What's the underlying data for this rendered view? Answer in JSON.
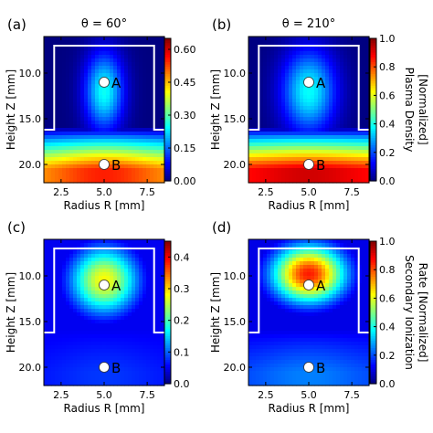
{
  "chart_data": [
    {
      "type": "heatmap",
      "panel_label": "(a)",
      "title": "θ = 60°",
      "xlabel": "Radius R [mm]",
      "ylabel": "Height Z [mm]",
      "xlim": [
        1.5,
        8.5
      ],
      "ylim": [
        22.0,
        6.0
      ],
      "xticks": [
        2.5,
        5.0,
        7.5
      ],
      "yticks": [
        10.0,
        15.0,
        20.0
      ],
      "xtick_labels": [
        "2.5",
        "5.0",
        "7.5"
      ],
      "ytick_labels": [
        "10.0",
        "15.0",
        "20.0"
      ],
      "colormap": "jet",
      "clim": [
        0.0,
        0.65
      ],
      "colorbar_ticks": [
        0.0,
        0.15,
        0.3,
        0.45,
        0.6
      ],
      "colorbar_tick_labels": [
        "0.00",
        "0.15",
        "0.30",
        "0.45",
        "0.60"
      ],
      "colorbar_label": "",
      "boundary_path": [
        [
          1.5,
          16.2
        ],
        [
          2.1,
          16.2
        ],
        [
          2.1,
          7.0
        ],
        [
          7.9,
          7.0
        ],
        [
          7.9,
          16.2
        ],
        [
          8.5,
          16.2
        ]
      ],
      "points": [
        {
          "label": "A",
          "r": 5.0,
          "z": 11.0
        },
        {
          "label": "B",
          "r": 5.0,
          "z": 20.0
        }
      ],
      "field": {
        "top_value": 0.0,
        "column_center": 0.25,
        "column_center_z": 12.0,
        "column_sigma_r": 0.8,
        "column_sigma_z": 3.0,
        "bottom_value_center": 0.55,
        "bottom_value_edge": 0.45,
        "bottom_start_z": 16.0
      }
    },
    {
      "type": "heatmap",
      "panel_label": "(b)",
      "title": "θ = 210°",
      "xlabel": "Radius R [mm]",
      "ylabel": "Height Z [mm]",
      "xlim": [
        1.5,
        8.5
      ],
      "ylim": [
        22.0,
        6.0
      ],
      "xticks": [
        2.5,
        5.0,
        7.5
      ],
      "yticks": [
        10.0,
        15.0,
        20.0
      ],
      "xtick_labels": [
        "2.5",
        "5.0",
        "7.5"
      ],
      "ytick_labels": [
        "10.0",
        "15.0",
        "20.0"
      ],
      "colormap": "jet",
      "clim": [
        0.0,
        1.0
      ],
      "colorbar_ticks": [
        0.0,
        0.2,
        0.4,
        0.6,
        0.8,
        1.0
      ],
      "colorbar_tick_labels": [
        "0.0",
        "0.2",
        "0.4",
        "0.6",
        "0.8",
        "1.0"
      ],
      "colorbar_label": "Plasma Density [Normalized]",
      "colorbar_label_lines": [
        "Plasma Density",
        "[Normalized]"
      ],
      "boundary_path": [
        [
          1.5,
          16.2
        ],
        [
          2.1,
          16.2
        ],
        [
          2.1,
          7.0
        ],
        [
          7.9,
          7.0
        ],
        [
          7.9,
          16.2
        ],
        [
          8.5,
          16.2
        ]
      ],
      "points": [
        {
          "label": "A",
          "r": 5.0,
          "z": 11.0
        },
        {
          "label": "B",
          "r": 5.0,
          "z": 20.0
        }
      ],
      "field": {
        "top_value": 0.0,
        "column_center": 0.38,
        "column_center_z": 12.0,
        "column_sigma_r": 1.1,
        "column_sigma_z": 3.2,
        "bottom_value_center": 0.92,
        "bottom_value_edge": 0.85,
        "bottom_start_z": 16.0
      }
    },
    {
      "type": "heatmap",
      "panel_label": "(c)",
      "title": "",
      "xlabel": "Radius R [mm]",
      "ylabel": "Height Z [mm]",
      "xlim": [
        1.5,
        8.5
      ],
      "ylim": [
        22.0,
        6.0
      ],
      "xticks": [
        2.5,
        5.0,
        7.5
      ],
      "yticks": [
        10.0,
        15.0,
        20.0
      ],
      "xtick_labels": [
        "2.5",
        "5.0",
        "7.5"
      ],
      "ytick_labels": [
        "10.0",
        "15.0",
        "20.0"
      ],
      "colormap": "jet",
      "clim": [
        0.0,
        0.45
      ],
      "colorbar_ticks": [
        0.0,
        0.1,
        0.2,
        0.3,
        0.4
      ],
      "colorbar_tick_labels": [
        "0.0",
        "0.1",
        "0.2",
        "0.3",
        "0.4"
      ],
      "colorbar_label": "",
      "boundary_path": [
        [
          1.5,
          16.2
        ],
        [
          2.1,
          16.2
        ],
        [
          2.1,
          7.0
        ],
        [
          7.9,
          7.0
        ],
        [
          7.9,
          16.2
        ],
        [
          8.5,
          16.2
        ]
      ],
      "points": [
        {
          "label": "A",
          "r": 5.0,
          "z": 11.0
        },
        {
          "label": "B",
          "r": 5.0,
          "z": 20.0
        }
      ],
      "field": {
        "top_value": 0.05,
        "column_center": 0.28,
        "column_center_z": 10.5,
        "column_sigma_r": 1.4,
        "column_sigma_z": 2.6,
        "bottom_value_center": 0.08,
        "bottom_value_edge": 0.06,
        "bottom_start_z": 16.0
      }
    },
    {
      "type": "heatmap",
      "panel_label": "(d)",
      "title": "",
      "xlabel": "Radius R [mm]",
      "ylabel": "Height Z [mm]",
      "xlim": [
        1.5,
        8.5
      ],
      "ylim": [
        22.0,
        6.0
      ],
      "xticks": [
        2.5,
        5.0,
        7.5
      ],
      "yticks": [
        10.0,
        15.0,
        20.0
      ],
      "xtick_labels": [
        "2.5",
        "5.0",
        "7.5"
      ],
      "ytick_labels": [
        "10.0",
        "15.0",
        "20.0"
      ],
      "colormap": "jet",
      "clim": [
        0.0,
        1.0
      ],
      "colorbar_ticks": [
        0.0,
        0.2,
        0.4,
        0.6,
        0.8,
        1.0
      ],
      "colorbar_tick_labels": [
        "0.0",
        "0.2",
        "0.4",
        "0.6",
        "0.8",
        "1.0"
      ],
      "colorbar_label": "Secondary Ionization Rate [Normalized]",
      "colorbar_label_lines": [
        "Secondary Ionization",
        "Rate [Normalized]"
      ],
      "boundary_path": [
        [
          1.5,
          16.2
        ],
        [
          2.1,
          16.2
        ],
        [
          2.1,
          7.0
        ],
        [
          7.9,
          7.0
        ],
        [
          7.9,
          16.2
        ],
        [
          8.5,
          16.2
        ]
      ],
      "points": [
        {
          "label": "A",
          "r": 5.0,
          "z": 11.0
        },
        {
          "label": "B",
          "r": 5.0,
          "z": 20.0
        }
      ],
      "field": {
        "top_value": 0.1,
        "column_center": 0.85,
        "column_center_z": 9.8,
        "column_sigma_r": 1.5,
        "column_sigma_z": 2.2,
        "bottom_value_center": 0.25,
        "bottom_value_edge": 0.18,
        "bottom_start_z": 16.0
      }
    }
  ]
}
